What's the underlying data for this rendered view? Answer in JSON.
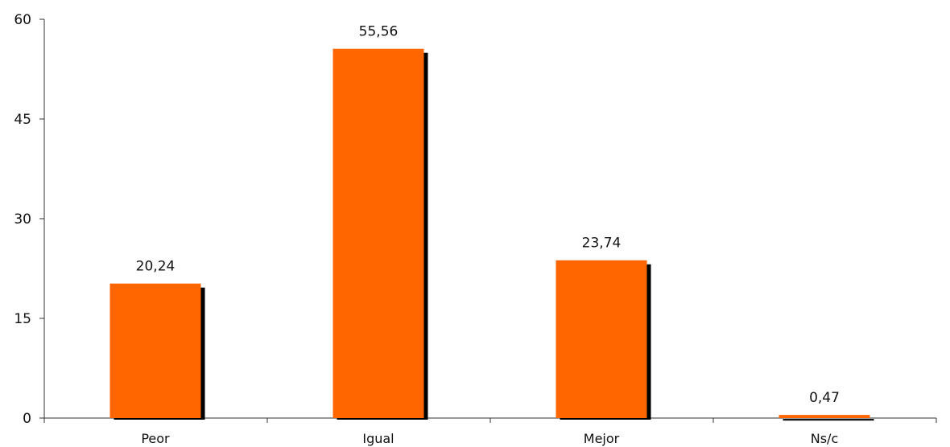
{
  "chart_data": {
    "type": "bar",
    "categories": [
      "Peor",
      "Igual",
      "Mejor",
      "Ns/c"
    ],
    "values": [
      20.24,
      55.56,
      23.74,
      0.47
    ],
    "data_labels": [
      "20,24",
      "55,56",
      "23,74",
      "0,47"
    ],
    "y_ticks": [
      "0",
      "15",
      "30",
      "45",
      "60"
    ],
    "ylim": [
      0,
      60
    ],
    "title": "",
    "xlabel": "",
    "ylabel": "",
    "grid": false,
    "legend": "none",
    "colors": {
      "bar": "#FF6600",
      "shadow": "#000000",
      "axis": "#333333",
      "text": "#111111"
    }
  }
}
